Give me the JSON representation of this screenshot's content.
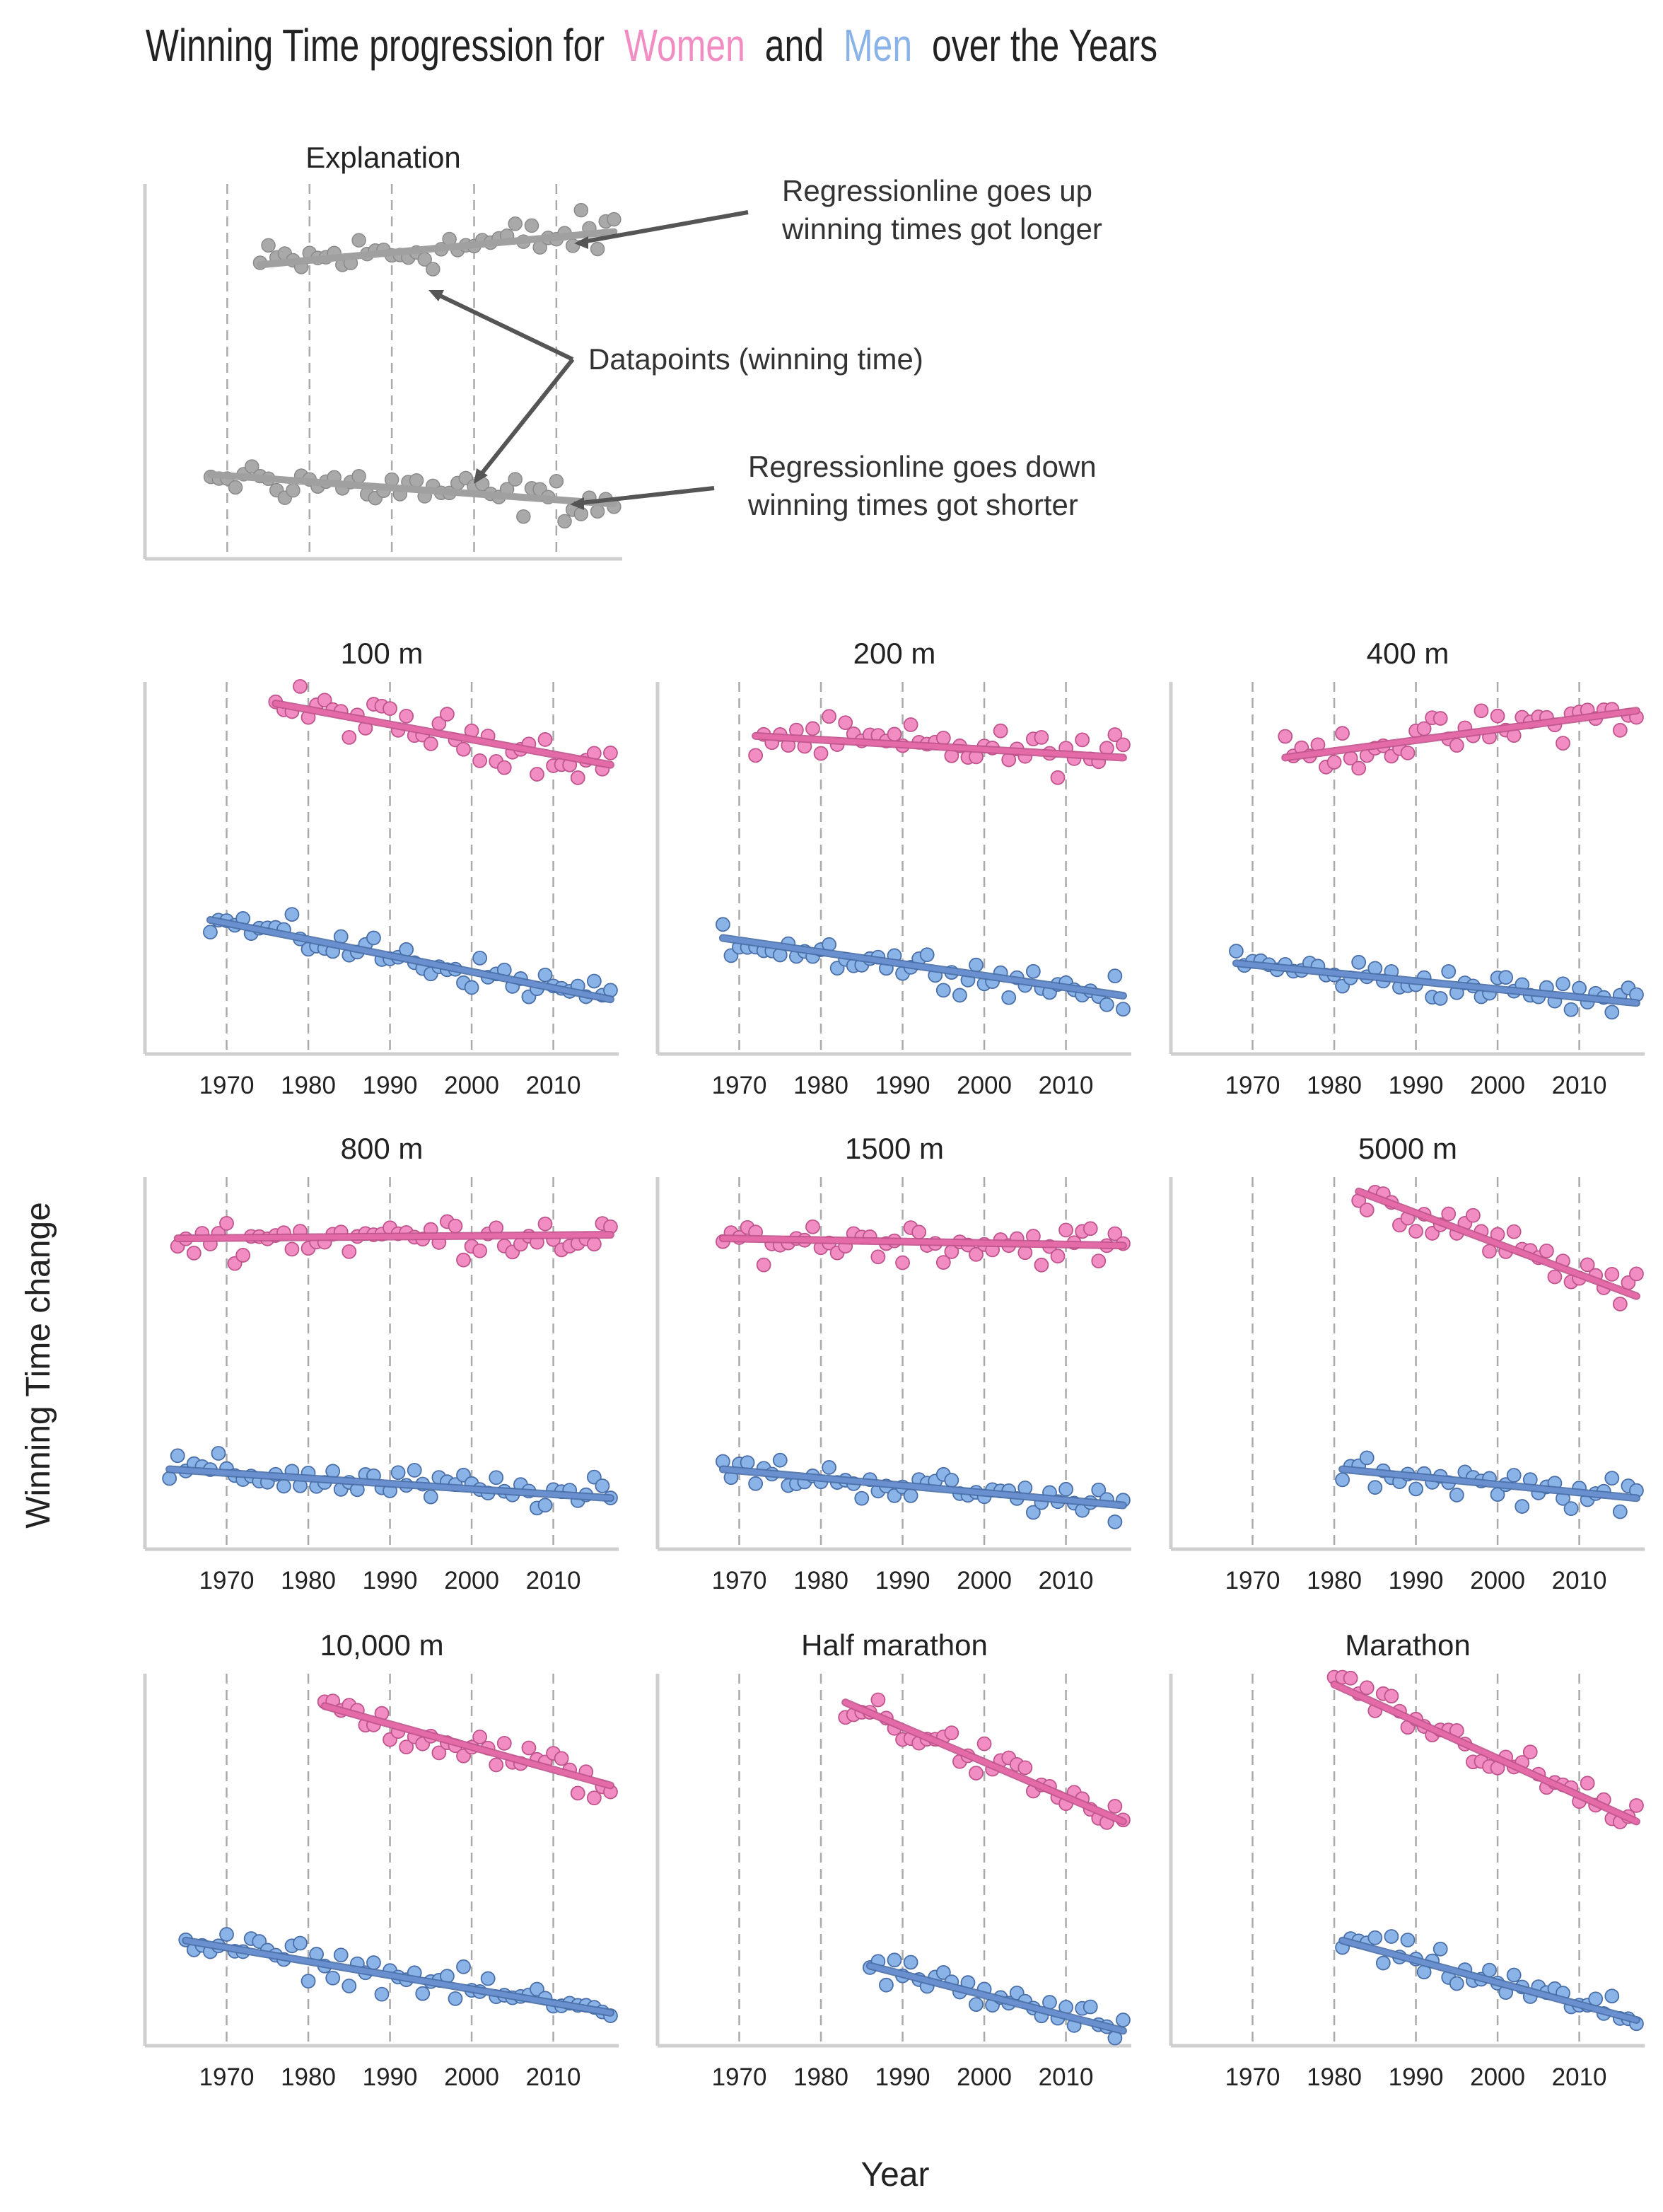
{
  "title": {
    "prefix": "Winning Time progression for",
    "women": "Women",
    "and": "and",
    "men": "Men",
    "suffix": "over the Years"
  },
  "colors": {
    "women": "#f28dc4",
    "women_line": "#e46aa8",
    "women_edge": "#c0548c",
    "men": "#8ab3e8",
    "men_line": "#6a90d0",
    "men_edge": "#4a6fa8",
    "explain": "#a9a9a9",
    "explain_line": "#a0a0a0",
    "axis": "#cfcfcf",
    "grid": "#aaaaaa",
    "text": "#222222"
  },
  "explanation": {
    "title": "Explanation",
    "up_line1": "Regressionline goes up",
    "up_line2": "winning times got longer",
    "datapoints": "Datapoints (winning time)",
    "down_line1": "Regressionline goes down",
    "down_line2": "winning times got shorter"
  },
  "axis_labels": {
    "y": "Winning Time change",
    "x": "Year"
  },
  "chart_data": {
    "type": "scatter",
    "subtype": "small-multiples scatter with regression lines",
    "x_ticks": [
      1970,
      1980,
      1990,
      2000,
      2010
    ],
    "xlim": [
      1960,
      2018
    ],
    "y_ticks_shown": false,
    "grid": "vertical dashed at decade ticks",
    "series_names": [
      "Women",
      "Men"
    ],
    "panels": [
      {
        "title": "100 m",
        "women": {
          "x_range": [
            1976,
            2017
          ],
          "trend": "down",
          "y_start": 0.95,
          "y_end": 0.78
        },
        "men": {
          "x_range": [
            1968,
            2017
          ],
          "trend": "down",
          "y_start": 0.35,
          "y_end": 0.13
        }
      },
      {
        "title": "200 m",
        "women": {
          "x_range": [
            1972,
            2017
          ],
          "trend": "flat",
          "y_start": 0.86,
          "y_end": 0.8
        },
        "men": {
          "x_range": [
            1968,
            2017
          ],
          "trend": "down",
          "y_start": 0.3,
          "y_end": 0.14
        }
      },
      {
        "title": "400 m",
        "women": {
          "x_range": [
            1974,
            2017
          ],
          "trend": "up",
          "y_start": 0.8,
          "y_end": 0.93
        },
        "men": {
          "x_range": [
            1968,
            2017
          ],
          "trend": "down",
          "y_start": 0.23,
          "y_end": 0.12
        }
      },
      {
        "title": "800 m",
        "women": {
          "x_range": [
            1964,
            2017
          ],
          "trend": "flat",
          "y_start": 0.84,
          "y_end": 0.85
        },
        "men": {
          "x_range": [
            1963,
            2017
          ],
          "trend": "down",
          "y_start": 0.2,
          "y_end": 0.12
        }
      },
      {
        "title": "1500 m",
        "women": {
          "x_range": [
            1968,
            2017
          ],
          "trend": "flat",
          "y_start": 0.84,
          "y_end": 0.82
        },
        "men": {
          "x_range": [
            1968,
            2017
          ],
          "trend": "down",
          "y_start": 0.2,
          "y_end": 0.1
        }
      },
      {
        "title": "5000 m",
        "women": {
          "x_range": [
            1983,
            2017
          ],
          "trend": "down",
          "y_start": 0.97,
          "y_end": 0.68
        },
        "men": {
          "x_range": [
            1981,
            2017
          ],
          "trend": "down",
          "y_start": 0.2,
          "y_end": 0.12
        }
      },
      {
        "title": "10,000 m",
        "women": {
          "x_range": [
            1982,
            2017
          ],
          "trend": "down",
          "y_start": 0.92,
          "y_end": 0.7
        },
        "men": {
          "x_range": [
            1965,
            2017
          ],
          "trend": "down",
          "y_start": 0.27,
          "y_end": 0.07
        }
      },
      {
        "title": "Half marathon",
        "women": {
          "x_range": [
            1983,
            2017
          ],
          "trend": "down",
          "y_start": 0.93,
          "y_end": 0.6
        },
        "men": {
          "x_range": [
            1986,
            2017
          ],
          "trend": "down",
          "y_start": 0.2,
          "y_end": 0.02
        }
      },
      {
        "title": "Marathon",
        "women": {
          "x_range": [
            1980,
            2017
          ],
          "trend": "down",
          "y_start": 0.98,
          "y_end": 0.6
        },
        "men": {
          "x_range": [
            1981,
            2017
          ],
          "trend": "down",
          "y_start": 0.27,
          "y_end": 0.05
        }
      }
    ]
  }
}
